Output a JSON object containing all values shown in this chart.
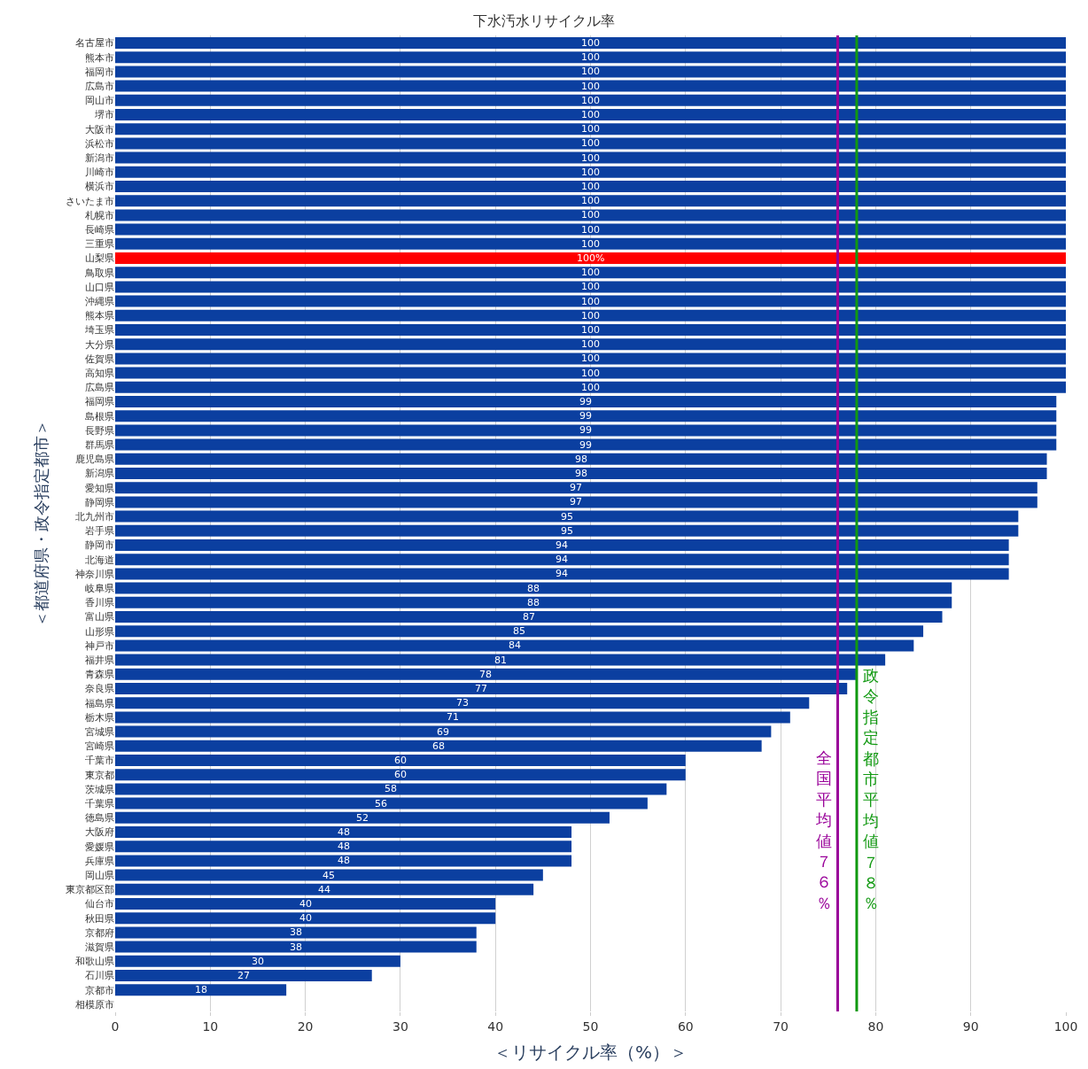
{
  "chart_data": {
    "type": "bar",
    "orientation": "horizontal",
    "title": "下水汚水リサイクル率",
    "xlabel": "＜リサイクル率（%）＞",
    "ylabel": "＜都道府県・政令指定都市＞",
    "categories": [
      "名古屋市",
      "熊本市",
      "福岡市",
      "広島市",
      "岡山市",
      "堺市",
      "大阪市",
      "浜松市",
      "新潟市",
      "川崎市",
      "横浜市",
      "さいたま市",
      "札幌市",
      "長崎県",
      "三重県",
      "山梨県",
      "鳥取県",
      "山口県",
      "沖縄県",
      "熊本県",
      "埼玉県",
      "大分県",
      "佐賀県",
      "高知県",
      "広島県",
      "福岡県",
      "島根県",
      "長野県",
      "群馬県",
      "鹿児島県",
      "新潟県",
      "愛知県",
      "静岡県",
      "北九州市",
      "岩手県",
      "静岡市",
      "北海道",
      "神奈川県",
      "岐阜県",
      "香川県",
      "富山県",
      "山形県",
      "神戸市",
      "福井県",
      "青森県",
      "奈良県",
      "福島県",
      "栃木県",
      "宮城県",
      "宮崎県",
      "千葉市",
      "東京都",
      "茨城県",
      "千葉県",
      "徳島県",
      "大阪府",
      "愛媛県",
      "兵庫県",
      "岡山県",
      "東京都区部",
      "仙台市",
      "秋田県",
      "京都府",
      "滋賀県",
      "和歌山県",
      "石川県",
      "京都市",
      "相模原市"
    ],
    "values": [
      100,
      100,
      100,
      100,
      100,
      100,
      100,
      100,
      100,
      100,
      100,
      100,
      100,
      100,
      100,
      100,
      100,
      100,
      100,
      100,
      100,
      100,
      100,
      100,
      100,
      99,
      99,
      99,
      99,
      98,
      98,
      97,
      97,
      95,
      95,
      94,
      94,
      94,
      88,
      88,
      87,
      85,
      84,
      81,
      78,
      77,
      73,
      71,
      69,
      68,
      60,
      60,
      58,
      56,
      52,
      48,
      48,
      48,
      45,
      44,
      40,
      40,
      38,
      38,
      30,
      27,
      18,
      null
    ],
    "value_labels": [
      "100",
      "100",
      "100",
      "100",
      "100",
      "100",
      "100",
      "100",
      "100",
      "100",
      "100",
      "100",
      "100",
      "100",
      "100",
      "100%",
      "100",
      "100",
      "100",
      "100",
      "100",
      "100",
      "100",
      "100",
      "100",
      "99",
      "99",
      "99",
      "99",
      "98",
      "98",
      "97",
      "97",
      "95",
      "95",
      "94",
      "94",
      "94",
      "88",
      "88",
      "87",
      "85",
      "84",
      "81",
      "78",
      "77",
      "73",
      "71",
      "69",
      "68",
      "60",
      "60",
      "58",
      "56",
      "52",
      "48",
      "48",
      "48",
      "45",
      "44",
      "40",
      "40",
      "38",
      "38",
      "30",
      "27",
      "18",
      null
    ],
    "colors": [
      "#0b3fa0",
      "#0b3fa0",
      "#0b3fa0",
      "#0b3fa0",
      "#0b3fa0",
      "#0b3fa0",
      "#0b3fa0",
      "#0b3fa0",
      "#0b3fa0",
      "#0b3fa0",
      "#0b3fa0",
      "#0b3fa0",
      "#0b3fa0",
      "#0b3fa0",
      "#0b3fa0",
      "#ff0000",
      "#0b3fa0",
      "#0b3fa0",
      "#0b3fa0",
      "#0b3fa0",
      "#0b3fa0",
      "#0b3fa0",
      "#0b3fa0",
      "#0b3fa0",
      "#0b3fa0",
      "#0b3fa0",
      "#0b3fa0",
      "#0b3fa0",
      "#0b3fa0",
      "#0b3fa0",
      "#0b3fa0",
      "#0b3fa0",
      "#0b3fa0",
      "#0b3fa0",
      "#0b3fa0",
      "#0b3fa0",
      "#0b3fa0",
      "#0b3fa0",
      "#0b3fa0",
      "#0b3fa0",
      "#0b3fa0",
      "#0b3fa0",
      "#0b3fa0",
      "#0b3fa0",
      "#0b3fa0",
      "#0b3fa0",
      "#0b3fa0",
      "#0b3fa0",
      "#0b3fa0",
      "#0b3fa0",
      "#0b3fa0",
      "#0b3fa0",
      "#0b3fa0",
      "#0b3fa0",
      "#0b3fa0",
      "#0b3fa0",
      "#0b3fa0",
      "#0b3fa0",
      "#0b3fa0",
      "#0b3fa0",
      "#0b3fa0",
      "#0b3fa0",
      "#0b3fa0",
      "#0b3fa0",
      "#0b3fa0",
      "#0b3fa0",
      "#0b3fa0",
      "#0b3fa0"
    ],
    "xlim": [
      0,
      100
    ],
    "xticks": [
      0,
      10,
      20,
      30,
      40,
      50,
      60,
      70,
      80,
      90,
      100
    ],
    "grid": "x",
    "ref_lines": [
      {
        "axis": "x",
        "value": 76,
        "label": "全国平均値７６％",
        "color": "#990099"
      },
      {
        "axis": "x",
        "value": 78,
        "label": "政令指定都市平均値７８％",
        "color": "#119911"
      }
    ]
  }
}
